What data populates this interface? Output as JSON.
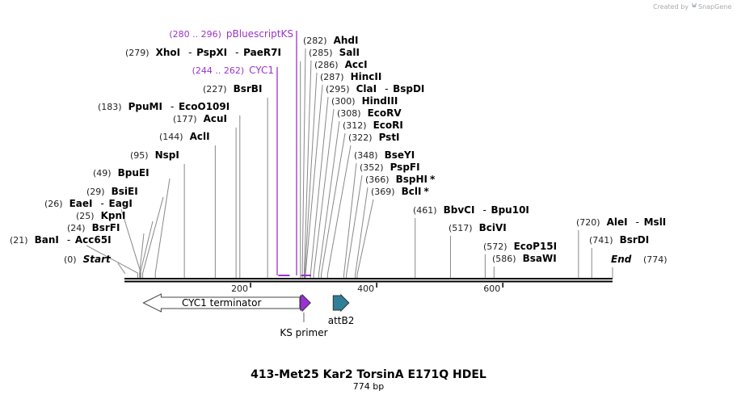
{
  "header": {
    "credit": "Created by",
    "brand": "SnapGene"
  },
  "map": {
    "title": "413-Met25 Kar2 TorsinA E171Q HDEL",
    "length_label": "774 bp",
    "total_bp": 774,
    "ticks": [
      {
        "label": "200",
        "pos": 200
      },
      {
        "label": "400",
        "pos": 400
      },
      {
        "label": "600",
        "pos": 600
      }
    ],
    "sites": [
      {
        "pos": 0,
        "pos_label": "(0)",
        "names": [
          "Start"
        ],
        "italic": true,
        "star": false
      },
      {
        "pos": 21,
        "pos_label": "(21)",
        "names": [
          "BanI",
          "Acc65I"
        ]
      },
      {
        "pos": 24,
        "pos_label": "(24)",
        "names": [
          "BsrFI"
        ]
      },
      {
        "pos": 25,
        "pos_label": "(25)",
        "names": [
          "KpnI"
        ]
      },
      {
        "pos": 26,
        "pos_label": "(26)",
        "names": [
          "EaeI",
          "EagI"
        ]
      },
      {
        "pos": 29,
        "pos_label": "(29)",
        "names": [
          "BsiEI"
        ]
      },
      {
        "pos": 49,
        "pos_label": "(49)",
        "names": [
          "BpuEI"
        ]
      },
      {
        "pos": 95,
        "pos_label": "(95)",
        "names": [
          "NspI"
        ]
      },
      {
        "pos": 144,
        "pos_label": "(144)",
        "names": [
          "AclI"
        ]
      },
      {
        "pos": 177,
        "pos_label": "(177)",
        "names": [
          "AcuI"
        ]
      },
      {
        "pos": 183,
        "pos_label": "(183)",
        "names": [
          "PpuMI",
          "EcoO109I"
        ]
      },
      {
        "pos": 227,
        "pos_label": "(227)",
        "names": [
          "BsrBI"
        ]
      },
      {
        "pos": 279,
        "pos_label": "(279)",
        "names": [
          "XhoI",
          "PspXI",
          "PaeR7I"
        ]
      },
      {
        "pos": 282,
        "pos_label": "(282)",
        "names": [
          "AhdI"
        ]
      },
      {
        "pos": 285,
        "pos_label": "(285)",
        "names": [
          "SalI"
        ]
      },
      {
        "pos": 286,
        "pos_label": "(286)",
        "names": [
          "AccI"
        ]
      },
      {
        "pos": 287,
        "pos_label": "(287)",
        "names": [
          "HincII"
        ]
      },
      {
        "pos": 295,
        "pos_label": "(295)",
        "names": [
          "ClaI",
          "BspDI"
        ]
      },
      {
        "pos": 300,
        "pos_label": "(300)",
        "names": [
          "HindIII"
        ]
      },
      {
        "pos": 308,
        "pos_label": "(308)",
        "names": [
          "EcoRV"
        ]
      },
      {
        "pos": 312,
        "pos_label": "(312)",
        "names": [
          "EcoRI"
        ]
      },
      {
        "pos": 322,
        "pos_label": "(322)",
        "names": [
          "PstI"
        ]
      },
      {
        "pos": 348,
        "pos_label": "(348)",
        "names": [
          "BseYI"
        ]
      },
      {
        "pos": 352,
        "pos_label": "(352)",
        "names": [
          "PspFI"
        ]
      },
      {
        "pos": 366,
        "pos_label": "(366)",
        "names": [
          "BspHI"
        ],
        "star": true
      },
      {
        "pos": 369,
        "pos_label": "(369)",
        "names": [
          "BclI"
        ],
        "star": true
      },
      {
        "pos": 461,
        "pos_label": "(461)",
        "names": [
          "BbvCI",
          "Bpu10I"
        ]
      },
      {
        "pos": 517,
        "pos_label": "(517)",
        "names": [
          "BciVI"
        ]
      },
      {
        "pos": 572,
        "pos_label": "(572)",
        "names": [
          "EcoP15I"
        ]
      },
      {
        "pos": 586,
        "pos_label": "(586)",
        "names": [
          "BsaWI"
        ]
      },
      {
        "pos": 720,
        "pos_label": "(720)",
        "names": [
          "AleI",
          "MslI"
        ]
      },
      {
        "pos": 741,
        "pos_label": "(741)",
        "names": [
          "BsrDI"
        ]
      },
      {
        "pos": 774,
        "pos_label": "(774)",
        "names": [
          "End"
        ],
        "italic": true
      }
    ],
    "primers": [
      {
        "range": "(280 .. 296)",
        "name": "pBluescriptKS",
        "start": 280,
        "end": 296
      },
      {
        "range": "(244 .. 262)",
        "name": "CYC1",
        "start": 244,
        "end": 262
      }
    ],
    "features": [
      {
        "name": "CYC1 terminator",
        "start": 30,
        "end": 278,
        "color": "#ffffff",
        "direction": "left"
      },
      {
        "name": "KS primer",
        "start": 279,
        "end": 295,
        "color": "#9b30d9",
        "direction": "right"
      },
      {
        "name": "attB2",
        "start": 331,
        "end": 356,
        "color": "#2f7f97",
        "direction": "right"
      }
    ]
  }
}
